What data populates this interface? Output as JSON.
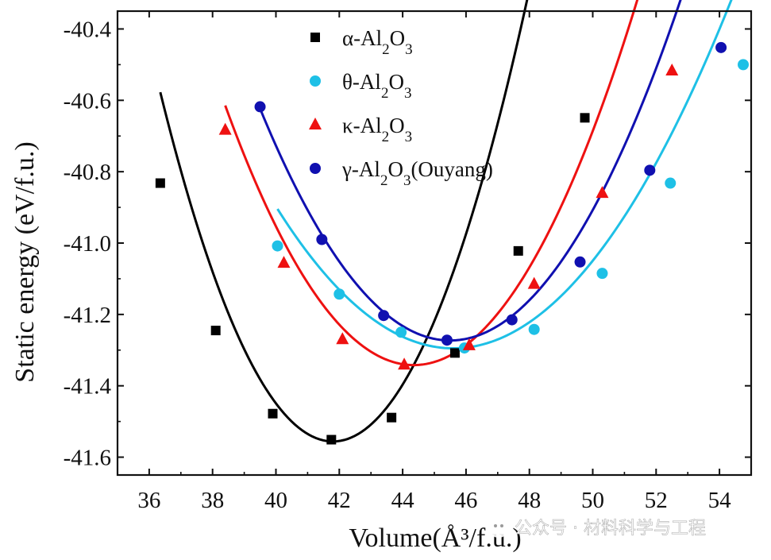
{
  "chart_data": {
    "type": "scatter",
    "xlabel": "Volume(Å³/f.u.)",
    "ylabel": "Static energy (eV/f.u.)",
    "xlim": [
      35,
      55
    ],
    "ylim": [
      -41.65,
      -40.35
    ],
    "x_ticks": [
      36,
      38,
      40,
      42,
      44,
      46,
      48,
      50,
      52,
      54
    ],
    "x_tick_labels": [
      "36",
      "38",
      "40",
      "42",
      "44",
      "46",
      "48",
      "50",
      "52",
      "54"
    ],
    "y_ticks": [
      -40.4,
      -40.6,
      -40.8,
      -41.0,
      -41.2,
      -41.4,
      -41.6
    ],
    "y_tick_labels": [
      "-40.4",
      "-40.6",
      "-40.8",
      "-41.0",
      "-41.2",
      "-41.4",
      "-41.6"
    ],
    "legend_position": "top-center",
    "series": [
      {
        "name": "α-Al2O3",
        "legend": {
          "prefix": "α-Al",
          "sub1": "2",
          "mid": "O",
          "sub2": "3",
          "suffix": ""
        },
        "color": "#000000",
        "marker": "square",
        "x": [
          36.35,
          38.1,
          39.9,
          41.75,
          43.65,
          45.65,
          47.65,
          49.75
        ],
        "y": [
          -40.832,
          -41.245,
          -41.478,
          -41.551,
          -41.489,
          -41.308,
          -41.022,
          -40.649
        ],
        "fit": {
          "a": 0.03295,
          "v0": 41.8,
          "e0": -41.556,
          "range": [
            36.35,
            49.75
          ]
        }
      },
      {
        "name": "θ-Al2O3",
        "legend": {
          "prefix": "θ-Al",
          "sub1": "2",
          "mid": "O",
          "sub2": "3",
          "suffix": ""
        },
        "color": "#1ec0e6",
        "marker": "circle",
        "x": [
          40.05,
          42.0,
          43.95,
          45.95,
          48.15,
          50.3,
          52.45,
          54.75
        ],
        "y": [
          -41.008,
          -41.143,
          -41.25,
          -41.294,
          -41.242,
          -41.085,
          -40.832,
          -40.5
        ],
        "fit": {
          "a": 0.01268,
          "v0": 45.6,
          "e0": -41.295,
          "range": [
            40.05,
            54.75
          ]
        }
      },
      {
        "name": "κ-Al2O3",
        "legend": {
          "prefix": "κ-Al",
          "sub1": "2",
          "mid": "O",
          "sub2": "3",
          "suffix": ""
        },
        "color": "#ee1111",
        "marker": "triangle",
        "x": [
          38.4,
          40.25,
          42.1,
          44.05,
          46.1,
          48.15,
          50.3,
          52.5
        ],
        "y": [
          -40.683,
          -41.056,
          -41.27,
          -41.341,
          -41.287,
          -41.115,
          -40.86,
          -40.517
        ],
        "fit": {
          "a": 0.02055,
          "v0": 44.35,
          "e0": -41.342,
          "range": [
            38.4,
            52.5
          ]
        }
      },
      {
        "name": "γ-Al2O3(Ouyang)",
        "legend": {
          "prefix": "γ-Al",
          "sub1": "2",
          "mid": "O",
          "sub2": "3",
          "suffix": "(Ouyang)"
        },
        "color": "#1010b0",
        "marker": "circle",
        "x": [
          39.5,
          41.45,
          43.4,
          45.4,
          47.45,
          49.6,
          51.8,
          54.05
        ],
        "y": [
          -40.618,
          -40.99,
          -41.203,
          -41.272,
          -41.215,
          -41.053,
          -40.796,
          -40.452
        ],
        "fit": {
          "a": 0.01805,
          "v0": 45.5,
          "e0": -41.273,
          "range": [
            39.5,
            54.05
          ]
        }
      }
    ]
  },
  "watermark": {
    "icon": "wechat-icon",
    "text": "公众号 · 材料科学与工程"
  }
}
